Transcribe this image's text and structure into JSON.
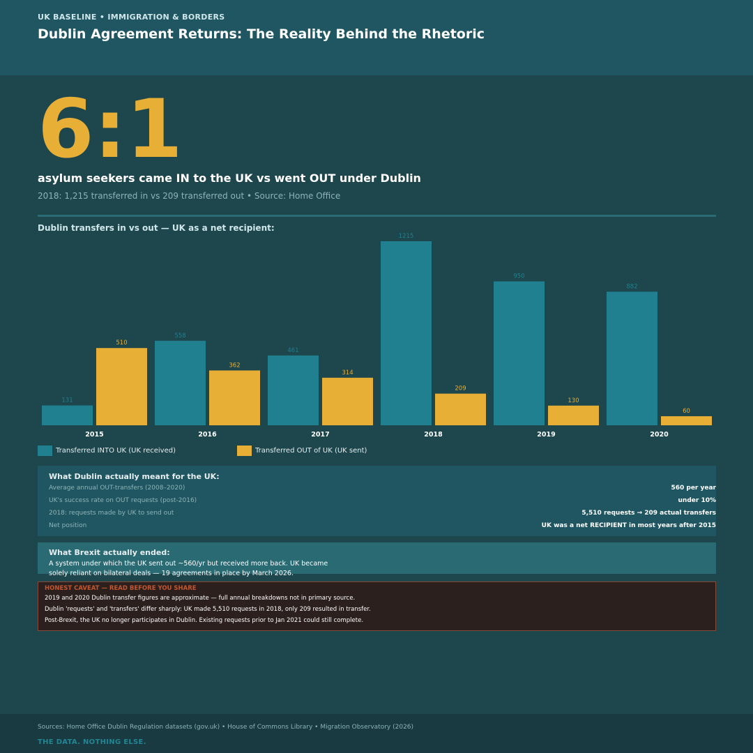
{
  "header": {
    "kicker": "UK BASELINE  •  IMMIGRATION & BORDERS",
    "title": "Dublin Agreement Returns: The Reality Behind the Rhetoric"
  },
  "hero": {
    "ratio": "6:1",
    "headline": "asylum seekers came IN to the UK vs went OUT under Dublin",
    "subline": "2018: 1,215 transferred in  vs  209 transferred out  •  Source: Home Office"
  },
  "chart_label": "Dublin transfers in vs out — UK as a net recipient:",
  "chart_data": {
    "type": "bar",
    "categories": [
      "2015",
      "2016",
      "2017",
      "2018",
      "2019",
      "2020"
    ],
    "series": [
      {
        "name": "Transferred INTO UK (UK received)",
        "values": [
          131,
          558,
          461,
          1215,
          950,
          882
        ],
        "color": "#21808f"
      },
      {
        "name": "Transferred OUT of UK (UK sent)",
        "values": [
          510,
          362,
          314,
          209,
          130,
          60
        ],
        "color": "#e8af37"
      }
    ],
    "ylim": [
      0,
      1215
    ],
    "grid": false,
    "legend": "bottom-left",
    "title": "",
    "xlabel": "",
    "ylabel": ""
  },
  "meant": {
    "title": "What Dublin actually meant for the UK:",
    "rows": [
      {
        "label": "Average annual OUT-transfers (2008–2020)",
        "value": "560 per year"
      },
      {
        "label": "UK's success rate on OUT requests (post-2016)",
        "value": "under 10%"
      },
      {
        "label": "2018: requests made by UK to send out",
        "value": "5,510 requests → 209 actual transfers"
      },
      {
        "label": "Net position",
        "value": "UK was a net RECIPIENT in most years after 2015"
      }
    ]
  },
  "brexit": {
    "title": "What Brexit actually ended:",
    "line1": "A system under which the UK sent out ~560/yr but received more back. UK became",
    "line2": "solely reliant on bilateral deals — 19 agreements in place by March 2026."
  },
  "caveat": {
    "title": "HONEST CAVEAT — READ BEFORE YOU SHARE",
    "lines": [
      "2019 and 2020 Dublin transfer figures are approximate — full annual breakdowns not in primary source.",
      "Dublin 'requests' and 'transfers' differ sharply: UK made 5,510 requests in 2018, only 209 resulted in transfer.",
      "Post-Brexit, the UK no longer participates in Dublin. Existing requests prior to Jan 2021 could still complete."
    ]
  },
  "footer": {
    "sources": "Sources: Home Office Dublin Regulation datasets (gov.uk)  •  House of Commons Library  •  Migration Observatory (2026)",
    "tagline": "THE DATA. NOTHING ELSE."
  }
}
